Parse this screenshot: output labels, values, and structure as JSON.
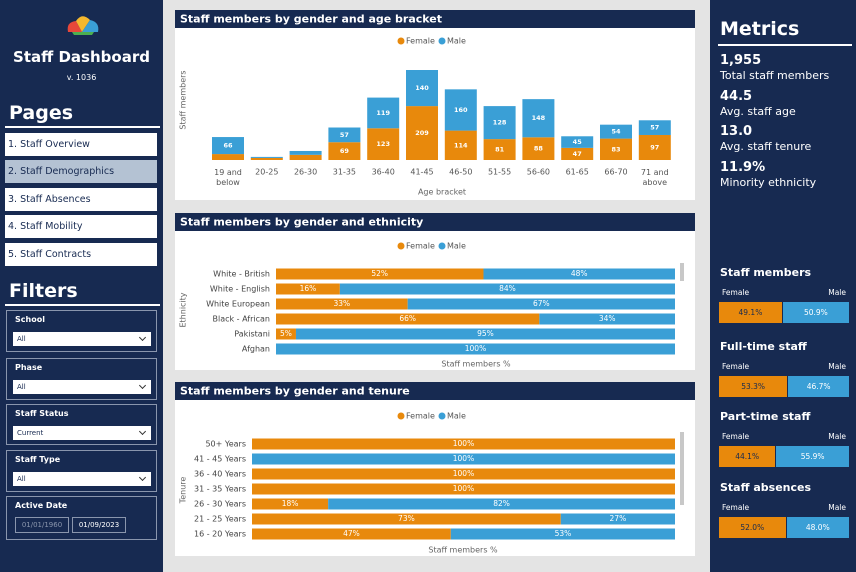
{
  "sidebar": {
    "title": "Staff Dashboard",
    "version": "v. 1036",
    "pages_heading": "Pages",
    "pages": [
      "1. Staff Overview",
      "2. Staff Demographics",
      "3. Staff Absences",
      "4. Staff Mobility",
      "5. Staff Contracts"
    ],
    "filters_heading": "Filters",
    "filters": [
      {
        "label": "School",
        "value": "All"
      },
      {
        "label": "Phase",
        "value": "All"
      },
      {
        "label": "Staff Status",
        "value": "Current"
      },
      {
        "label": "Staff Type",
        "value": "All"
      }
    ],
    "active_date": {
      "label": "Active Date",
      "from": "01/01/1960",
      "to": "01/09/2023"
    }
  },
  "metrics": {
    "heading": "Metrics",
    "items": [
      {
        "value": "1,955",
        "label": "Total staff members"
      },
      {
        "value": "44.5",
        "label": "Avg. staff age"
      },
      {
        "value": "13.0",
        "label": "Avg. staff tenure"
      },
      {
        "value": "11.9%",
        "label": "Minority ethnicity"
      }
    ]
  },
  "splits": [
    {
      "title": "Staff members",
      "labels": [
        "Female",
        "Male"
      ],
      "values": [
        49.1,
        50.9
      ],
      "value_labels": [
        "49.1%",
        "50.9%"
      ],
      "colors": [
        "#e8890c",
        "#3a9fd6"
      ]
    },
    {
      "title": "Full-time staff",
      "labels": [
        "Female",
        "Male"
      ],
      "values": [
        53.3,
        46.7
      ],
      "value_labels": [
        "53.3%",
        "46.7%"
      ],
      "colors": [
        "#e8890c",
        "#3a9fd6"
      ]
    },
    {
      "title": "Part-time staff",
      "labels": [
        "Female",
        "Male"
      ],
      "values": [
        44.1,
        55.9
      ],
      "value_labels": [
        "44.1%",
        "55.9%"
      ],
      "colors": [
        "#e8890c",
        "#3a9fd6"
      ]
    },
    {
      "title": "Staff absences",
      "labels": [
        "Female",
        "Male"
      ],
      "values": [
        52.0,
        48.0
      ],
      "value_labels": [
        "52.0%",
        "48.0%"
      ],
      "colors": [
        "#e8890c",
        "#3a9fd6"
      ]
    }
  ],
  "chart_data": [
    {
      "type": "bar",
      "orientation": "vertical",
      "title": "Staff members by gender and age bracket",
      "x_label": "Age bracket",
      "y_label": "Staff members",
      "categories": [
        "19 and below",
        "20-25",
        "26-30",
        "31-35",
        "36-40",
        "41-45",
        "46-50",
        "51-55",
        "56-60",
        "61-65",
        "66-70",
        "71 and above"
      ],
      "series": [
        {
          "name": "Female",
          "color": "#e8890c",
          "values": [
            23,
            8,
            20,
            69,
            123,
            209,
            114,
            81,
            88,
            47,
            83,
            97
          ]
        },
        {
          "name": "Male",
          "color": "#3a9fd6",
          "values": [
            66,
            4,
            15,
            57,
            119,
            140,
            160,
            128,
            148,
            45,
            54,
            57
          ]
        }
      ]
    },
    {
      "type": "hbar",
      "title": "Staff members by gender and ethnicity",
      "x_label": "Staff members %",
      "y_label": "Ethnicity",
      "categories": [
        "White - British",
        "White - English",
        "White European",
        "Black - African",
        "Pakistani",
        "Afghan"
      ],
      "series": [
        {
          "name": "Female",
          "color": "#e8890c",
          "values": [
            52,
            16,
            33,
            66,
            5,
            0
          ],
          "value_labels": [
            "52%",
            "16%",
            "33%",
            "66%",
            "5%",
            null
          ]
        },
        {
          "name": "Male",
          "color": "#3a9fd6",
          "values": [
            48,
            84,
            67,
            34,
            95,
            100
          ],
          "value_labels": [
            "48%",
            "84%",
            "67%",
            "34%",
            "95%",
            "100%"
          ]
        }
      ]
    },
    {
      "type": "hbar",
      "title": "Staff members by gender and tenure",
      "x_label": "Staff members %",
      "y_label": "Tenure",
      "categories": [
        "50+ Years",
        "41 - 45 Years",
        "36 - 40 Years",
        "31 - 35 Years",
        "26 - 30 Years",
        "21 - 25 Years",
        "16 - 20 Years"
      ],
      "series": [
        {
          "name": "Female",
          "color": "#e8890c",
          "values": [
            100,
            0,
            100,
            100,
            18,
            73,
            47
          ],
          "value_labels": [
            "100%",
            null,
            "100%",
            "100%",
            "18%",
            "73%",
            "47%"
          ]
        },
        {
          "name": "Male",
          "color": "#3a9fd6",
          "values": [
            0,
            100,
            0,
            0,
            82,
            27,
            53
          ],
          "value_labels": [
            null,
            "100%",
            null,
            null,
            "82%",
            "27%",
            "53%"
          ]
        }
      ]
    }
  ]
}
